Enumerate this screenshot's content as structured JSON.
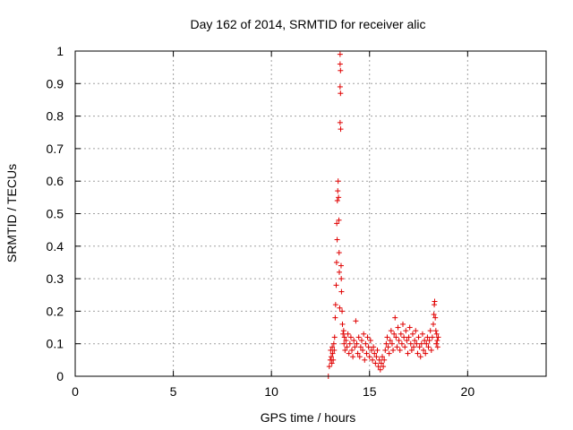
{
  "chart_data": {
    "type": "scatter",
    "title": "Day 162 of 2014, SRMTID for receiver alic",
    "xlabel": "GPS time / hours",
    "ylabel": "SRMTID / TECUs",
    "xlim": [
      0,
      24
    ],
    "ylim": [
      0,
      1
    ],
    "xticks": [
      0,
      5,
      10,
      15,
      20
    ],
    "yticks": [
      0,
      0.1,
      0.2,
      0.3,
      0.4,
      0.5,
      0.6,
      0.7,
      0.8,
      0.9,
      1
    ],
    "xtick_labels": [
      "0",
      "5",
      "10",
      "15",
      "20"
    ],
    "ytick_labels": [
      "0",
      "0.1",
      "0.2",
      "0.3",
      "0.4",
      "0.5",
      "0.6",
      "0.7",
      "0.8",
      "0.9",
      "1"
    ],
    "grid": true,
    "marker": "+",
    "color": "#e00000",
    "series": [
      {
        "name": "alic",
        "points": [
          [
            12.9,
            0.0
          ],
          [
            12.95,
            0.03
          ],
          [
            13.0,
            0.05
          ],
          [
            13.02,
            0.08
          ],
          [
            13.05,
            0.06
          ],
          [
            13.08,
            0.04
          ],
          [
            13.1,
            0.09
          ],
          [
            13.12,
            0.07
          ],
          [
            13.15,
            0.05
          ],
          [
            13.18,
            0.1
          ],
          [
            13.2,
            0.08
          ],
          [
            13.22,
            0.12
          ],
          [
            13.25,
            0.18
          ],
          [
            13.27,
            0.22
          ],
          [
            13.3,
            0.28
          ],
          [
            13.32,
            0.35
          ],
          [
            13.33,
            0.47
          ],
          [
            13.35,
            0.42
          ],
          [
            13.36,
            0.54
          ],
          [
            13.38,
            0.57
          ],
          [
            13.4,
            0.6
          ],
          [
            13.42,
            0.55
          ],
          [
            13.44,
            0.48
          ],
          [
            13.45,
            0.38
          ],
          [
            13.46,
            0.32
          ],
          [
            13.48,
            0.21
          ],
          [
            13.5,
            0.99
          ],
          [
            13.5,
            0.96
          ],
          [
            13.52,
            0.94
          ],
          [
            13.5,
            0.89
          ],
          [
            13.52,
            0.87
          ],
          [
            13.5,
            0.78
          ],
          [
            13.53,
            0.76
          ],
          [
            13.55,
            0.34
          ],
          [
            13.56,
            0.3
          ],
          [
            13.57,
            0.26
          ],
          [
            13.6,
            0.2
          ],
          [
            13.62,
            0.16
          ],
          [
            13.65,
            0.13
          ],
          [
            13.68,
            0.14
          ],
          [
            13.7,
            0.1
          ],
          [
            13.72,
            0.12
          ],
          [
            13.75,
            0.08
          ],
          [
            13.8,
            0.11
          ],
          [
            13.85,
            0.09
          ],
          [
            13.9,
            0.13
          ],
          [
            13.95,
            0.07
          ],
          [
            14.0,
            0.1
          ],
          [
            14.05,
            0.12
          ],
          [
            14.1,
            0.08
          ],
          [
            14.15,
            0.06
          ],
          [
            14.2,
            0.11
          ],
          [
            14.25,
            0.09
          ],
          [
            14.3,
            0.17
          ],
          [
            14.35,
            0.1
          ],
          [
            14.4,
            0.07
          ],
          [
            14.45,
            0.12
          ],
          [
            14.5,
            0.06
          ],
          [
            14.55,
            0.09
          ],
          [
            14.6,
            0.11
          ],
          [
            14.65,
            0.08
          ],
          [
            14.7,
            0.13
          ],
          [
            14.75,
            0.05
          ],
          [
            14.8,
            0.1
          ],
          [
            14.85,
            0.07
          ],
          [
            14.9,
            0.12
          ],
          [
            14.95,
            0.09
          ],
          [
            15.0,
            0.06
          ],
          [
            15.05,
            0.11
          ],
          [
            15.1,
            0.08
          ],
          [
            15.15,
            0.05
          ],
          [
            15.2,
            0.09
          ],
          [
            15.25,
            0.07
          ],
          [
            15.3,
            0.04
          ],
          [
            15.35,
            0.06
          ],
          [
            15.4,
            0.08
          ],
          [
            15.45,
            0.03
          ],
          [
            15.5,
            0.05
          ],
          [
            15.55,
            0.02
          ],
          [
            15.6,
            0.04
          ],
          [
            15.65,
            0.06
          ],
          [
            15.7,
            0.03
          ],
          [
            15.75,
            0.05
          ],
          [
            15.8,
            0.08
          ],
          [
            15.85,
            0.1
          ],
          [
            15.9,
            0.12
          ],
          [
            15.95,
            0.09
          ],
          [
            16.0,
            0.07
          ],
          [
            16.05,
            0.11
          ],
          [
            16.1,
            0.14
          ],
          [
            16.15,
            0.1
          ],
          [
            16.2,
            0.08
          ],
          [
            16.25,
            0.13
          ],
          [
            16.3,
            0.18
          ],
          [
            16.35,
            0.12
          ],
          [
            16.4,
            0.09
          ],
          [
            16.45,
            0.15
          ],
          [
            16.5,
            0.11
          ],
          [
            16.55,
            0.08
          ],
          [
            16.6,
            0.13
          ],
          [
            16.65,
            0.1
          ],
          [
            16.7,
            0.16
          ],
          [
            16.75,
            0.12
          ],
          [
            16.8,
            0.09
          ],
          [
            16.85,
            0.14
          ],
          [
            16.9,
            0.11
          ],
          [
            16.95,
            0.07
          ],
          [
            17.0,
            0.12
          ],
          [
            17.05,
            0.15
          ],
          [
            17.1,
            0.1
          ],
          [
            17.15,
            0.08
          ],
          [
            17.2,
            0.13
          ],
          [
            17.25,
            0.09
          ],
          [
            17.3,
            0.11
          ],
          [
            17.35,
            0.14
          ],
          [
            17.4,
            0.1
          ],
          [
            17.45,
            0.07
          ],
          [
            17.5,
            0.12
          ],
          [
            17.55,
            0.09
          ],
          [
            17.6,
            0.06
          ],
          [
            17.65,
            0.1
          ],
          [
            17.7,
            0.13
          ],
          [
            17.75,
            0.08
          ],
          [
            17.8,
            0.11
          ],
          [
            17.85,
            0.07
          ],
          [
            17.9,
            0.1
          ],
          [
            17.95,
            0.12
          ],
          [
            18.0,
            0.09
          ],
          [
            18.05,
            0.11
          ],
          [
            18.1,
            0.14
          ],
          [
            18.15,
            0.08
          ],
          [
            18.2,
            0.12
          ],
          [
            18.25,
            0.16
          ],
          [
            18.28,
            0.19
          ],
          [
            18.3,
            0.22
          ],
          [
            18.32,
            0.23
          ],
          [
            18.35,
            0.18
          ],
          [
            18.38,
            0.14
          ],
          [
            18.4,
            0.1
          ],
          [
            18.42,
            0.13
          ],
          [
            18.45,
            0.11
          ],
          [
            18.47,
            0.09
          ],
          [
            18.5,
            0.12
          ]
        ]
      }
    ]
  }
}
